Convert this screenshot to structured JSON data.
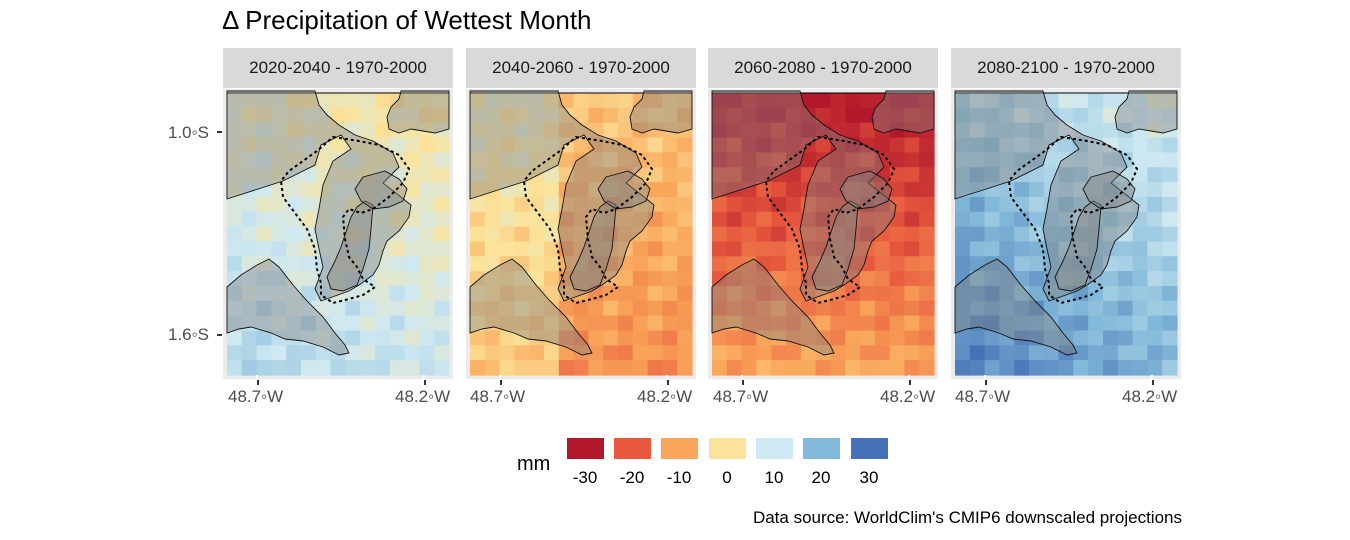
{
  "title": "Δ Precipitation of Wettest Month",
  "panels": [
    {
      "label": "2020-2040 - 1970-2000",
      "mean": 8
    },
    {
      "label": "2040-2060 - 1970-2000",
      "mean": -6
    },
    {
      "label": "2060-2080 - 1970-2000",
      "mean": -24
    },
    {
      "label": "2080-2100 - 1970-2000",
      "mean": 21
    }
  ],
  "y_axis": {
    "ticks": [
      "1.0◦S",
      "1.6◦S"
    ]
  },
  "x_axis": {
    "ticks": [
      "48.7◦W",
      "48.2◦W"
    ]
  },
  "legend": {
    "title": "mm",
    "items": [
      {
        "label": "-30",
        "color": "#b2182b"
      },
      {
        "label": "-20",
        "color": "#e85a3e"
      },
      {
        "label": "-10",
        "color": "#f9a55a"
      },
      {
        "label": "0",
        "color": "#fbe49a"
      },
      {
        "label": "10",
        "color": "#cfe9f2"
      },
      {
        "label": "20",
        "color": "#84bad9"
      },
      {
        "label": "30",
        "color": "#4572b6"
      }
    ]
  },
  "caption": "Data source: WorldClim's CMIP6 downscaled projections"
}
